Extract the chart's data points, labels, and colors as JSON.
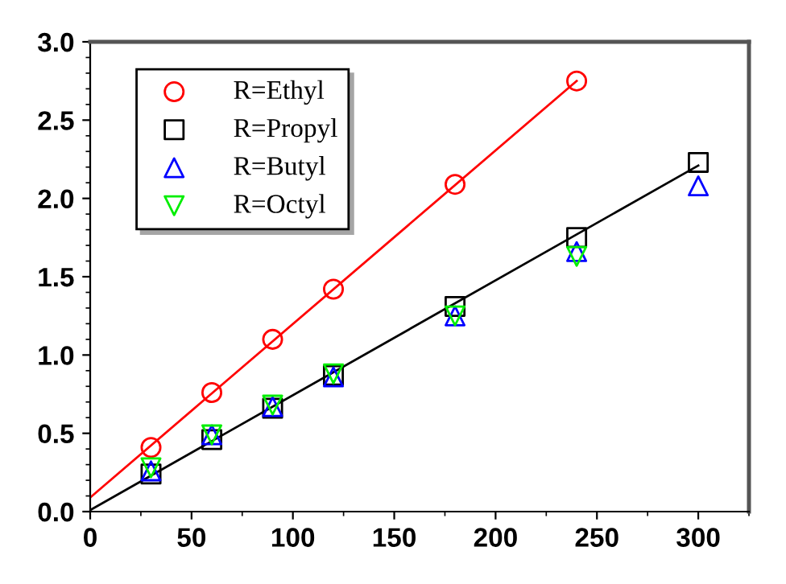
{
  "chart_data": {
    "type": "scatter",
    "xlim": [
      0,
      325
    ],
    "ylim": [
      0,
      3.0
    ],
    "xticks": [
      0,
      50,
      100,
      150,
      200,
      250,
      300
    ],
    "yticks": [
      {
        "value": 0,
        "label": "0.0"
      },
      {
        "value": 0.5,
        "label": "0.5"
      },
      {
        "value": 1.0,
        "label": "1.0"
      },
      {
        "value": 1.5,
        "label": "1.5"
      },
      {
        "value": 2.0,
        "label": "2.0"
      },
      {
        "value": 2.5,
        "label": "2.5"
      },
      {
        "value": 3.0,
        "label": "3.0"
      }
    ],
    "grid": false,
    "legend": "top left",
    "series": [
      {
        "name": "R=Ethyl",
        "color": "#ff0000",
        "marker": "circle",
        "x": [
          30,
          60,
          90,
          120,
          180,
          240
        ],
        "values": [
          0.41,
          0.76,
          1.1,
          1.42,
          2.09,
          2.75
        ]
      },
      {
        "name": "R=Propyl",
        "color": "#000000",
        "marker": "square",
        "x": [
          30,
          60,
          90,
          120,
          180,
          240,
          300
        ],
        "values": [
          0.24,
          0.46,
          0.66,
          0.87,
          1.31,
          1.75,
          2.23
        ]
      },
      {
        "name": "R=Butyl",
        "color": "#0000ff",
        "marker": "triangle",
        "x": [
          30,
          60,
          90,
          120,
          180,
          240,
          300
        ],
        "values": [
          0.26,
          0.49,
          0.67,
          0.86,
          1.25,
          1.66,
          2.08
        ]
      },
      {
        "name": "R=Octyl",
        "color": "#00ee00",
        "marker": "triangle_down",
        "x": [
          30,
          60,
          90,
          120,
          180,
          240
        ],
        "values": [
          0.28,
          0.49,
          0.68,
          0.88,
          1.25,
          1.63
        ]
      },
      {
        "type": "line",
        "color": "#ff0000",
        "marker": "none",
        "x": [
          0,
          240
        ],
        "values": [
          0.09,
          2.75
        ]
      },
      {
        "type": "line",
        "color": "#000000",
        "marker": "none",
        "x": [
          0,
          300
        ],
        "values": [
          0.01,
          2.21
        ]
      }
    ]
  }
}
